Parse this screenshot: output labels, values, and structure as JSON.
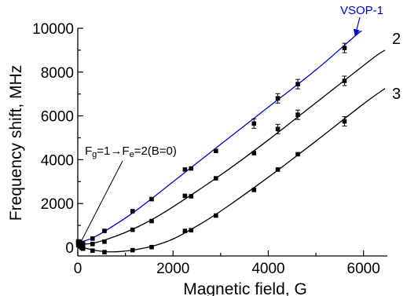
{
  "chart_data": {
    "type": "scatter",
    "xlabel": "Magnetic field, G",
    "ylabel": "Frequency shift, MHz",
    "xlim": [
      0,
      6500
    ],
    "ylim": [
      -500,
      10000
    ],
    "x_ticks": [
      0,
      2000,
      4000,
      6000
    ],
    "y_ticks": [
      0,
      2000,
      4000,
      6000,
      8000,
      10000
    ],
    "x_tick_labels": [
      "0",
      "2000",
      "4000",
      "6000"
    ],
    "y_tick_labels": [
      "0",
      "2000",
      "4000",
      "6000",
      "8000",
      "10000"
    ],
    "grid": false,
    "legend": "none",
    "series": [
      {
        "name": "VSOP-1",
        "color": "#0000cc",
        "points": [
          [
            10,
            270
          ],
          [
            40,
            250
          ],
          [
            80,
            200
          ],
          [
            110,
            160
          ],
          [
            310,
            400
          ],
          [
            560,
            750
          ],
          [
            1150,
            1650
          ],
          [
            1550,
            2200
          ],
          [
            2250,
            3550
          ],
          [
            2380,
            3600
          ],
          [
            2900,
            4400
          ],
          [
            3700,
            5650
          ],
          [
            4200,
            6800
          ],
          [
            4620,
            7450
          ],
          [
            5600,
            9100
          ]
        ],
        "fit": [
          [
            0,
            190
          ],
          [
            300,
            420
          ],
          [
            600,
            780
          ],
          [
            1200,
            1640
          ],
          [
            2000,
            2990
          ],
          [
            3000,
            4700
          ],
          [
            4000,
            6400
          ],
          [
            5000,
            8100
          ],
          [
            5850,
            9700
          ],
          [
            5950,
            9850
          ]
        ]
      },
      {
        "name": "2",
        "color": "#000000",
        "points": [
          [
            10,
            220
          ],
          [
            40,
            180
          ],
          [
            80,
            150
          ],
          [
            110,
            80
          ],
          [
            310,
            150
          ],
          [
            560,
            260
          ],
          [
            1150,
            800
          ],
          [
            1550,
            1200
          ],
          [
            2250,
            2350
          ],
          [
            2380,
            2330
          ],
          [
            2900,
            3150
          ],
          [
            3700,
            4300
          ],
          [
            4200,
            5400
          ],
          [
            4620,
            6050
          ],
          [
            5600,
            7600
          ]
        ],
        "fit": [
          [
            0,
            140
          ],
          [
            300,
            180
          ],
          [
            600,
            360
          ],
          [
            1000,
            680
          ],
          [
            1500,
            1200
          ],
          [
            2000,
            1850
          ],
          [
            3000,
            3300
          ],
          [
            4000,
            4900
          ],
          [
            5000,
            6600
          ],
          [
            6000,
            8300
          ],
          [
            6300,
            8800
          ],
          [
            6450,
            9000
          ]
        ]
      },
      {
        "name": "3",
        "color": "#000000",
        "points": [
          [
            10,
            100
          ],
          [
            40,
            40
          ],
          [
            80,
            -20
          ],
          [
            110,
            -60
          ],
          [
            310,
            -150
          ],
          [
            560,
            -220
          ],
          [
            1150,
            -130
          ],
          [
            1550,
            10
          ],
          [
            2250,
            750
          ],
          [
            2380,
            780
          ],
          [
            2900,
            1450
          ],
          [
            3700,
            2620
          ],
          [
            4200,
            3550
          ],
          [
            4620,
            4250
          ],
          [
            5600,
            5750
          ]
        ],
        "fit": [
          [
            0,
            60
          ],
          [
            300,
            -110
          ],
          [
            600,
            -200
          ],
          [
            900,
            -190
          ],
          [
            1200,
            -110
          ],
          [
            1600,
            70
          ],
          [
            2000,
            380
          ],
          [
            2500,
            970
          ],
          [
            3000,
            1650
          ],
          [
            4000,
            3200
          ],
          [
            5000,
            4850
          ],
          [
            6000,
            6550
          ],
          [
            6450,
            7250
          ]
        ]
      }
    ],
    "annotations": [
      {
        "text": "Fɡ=1→Fe=2(B=0)",
        "points_to": [
          40,
          200
        ]
      },
      {
        "text": "VSOP-1",
        "points_to": [
          5850,
          9800
        ]
      },
      {
        "text": "2",
        "near_series": "2"
      },
      {
        "text": "3",
        "near_series": "3"
      }
    ]
  }
}
